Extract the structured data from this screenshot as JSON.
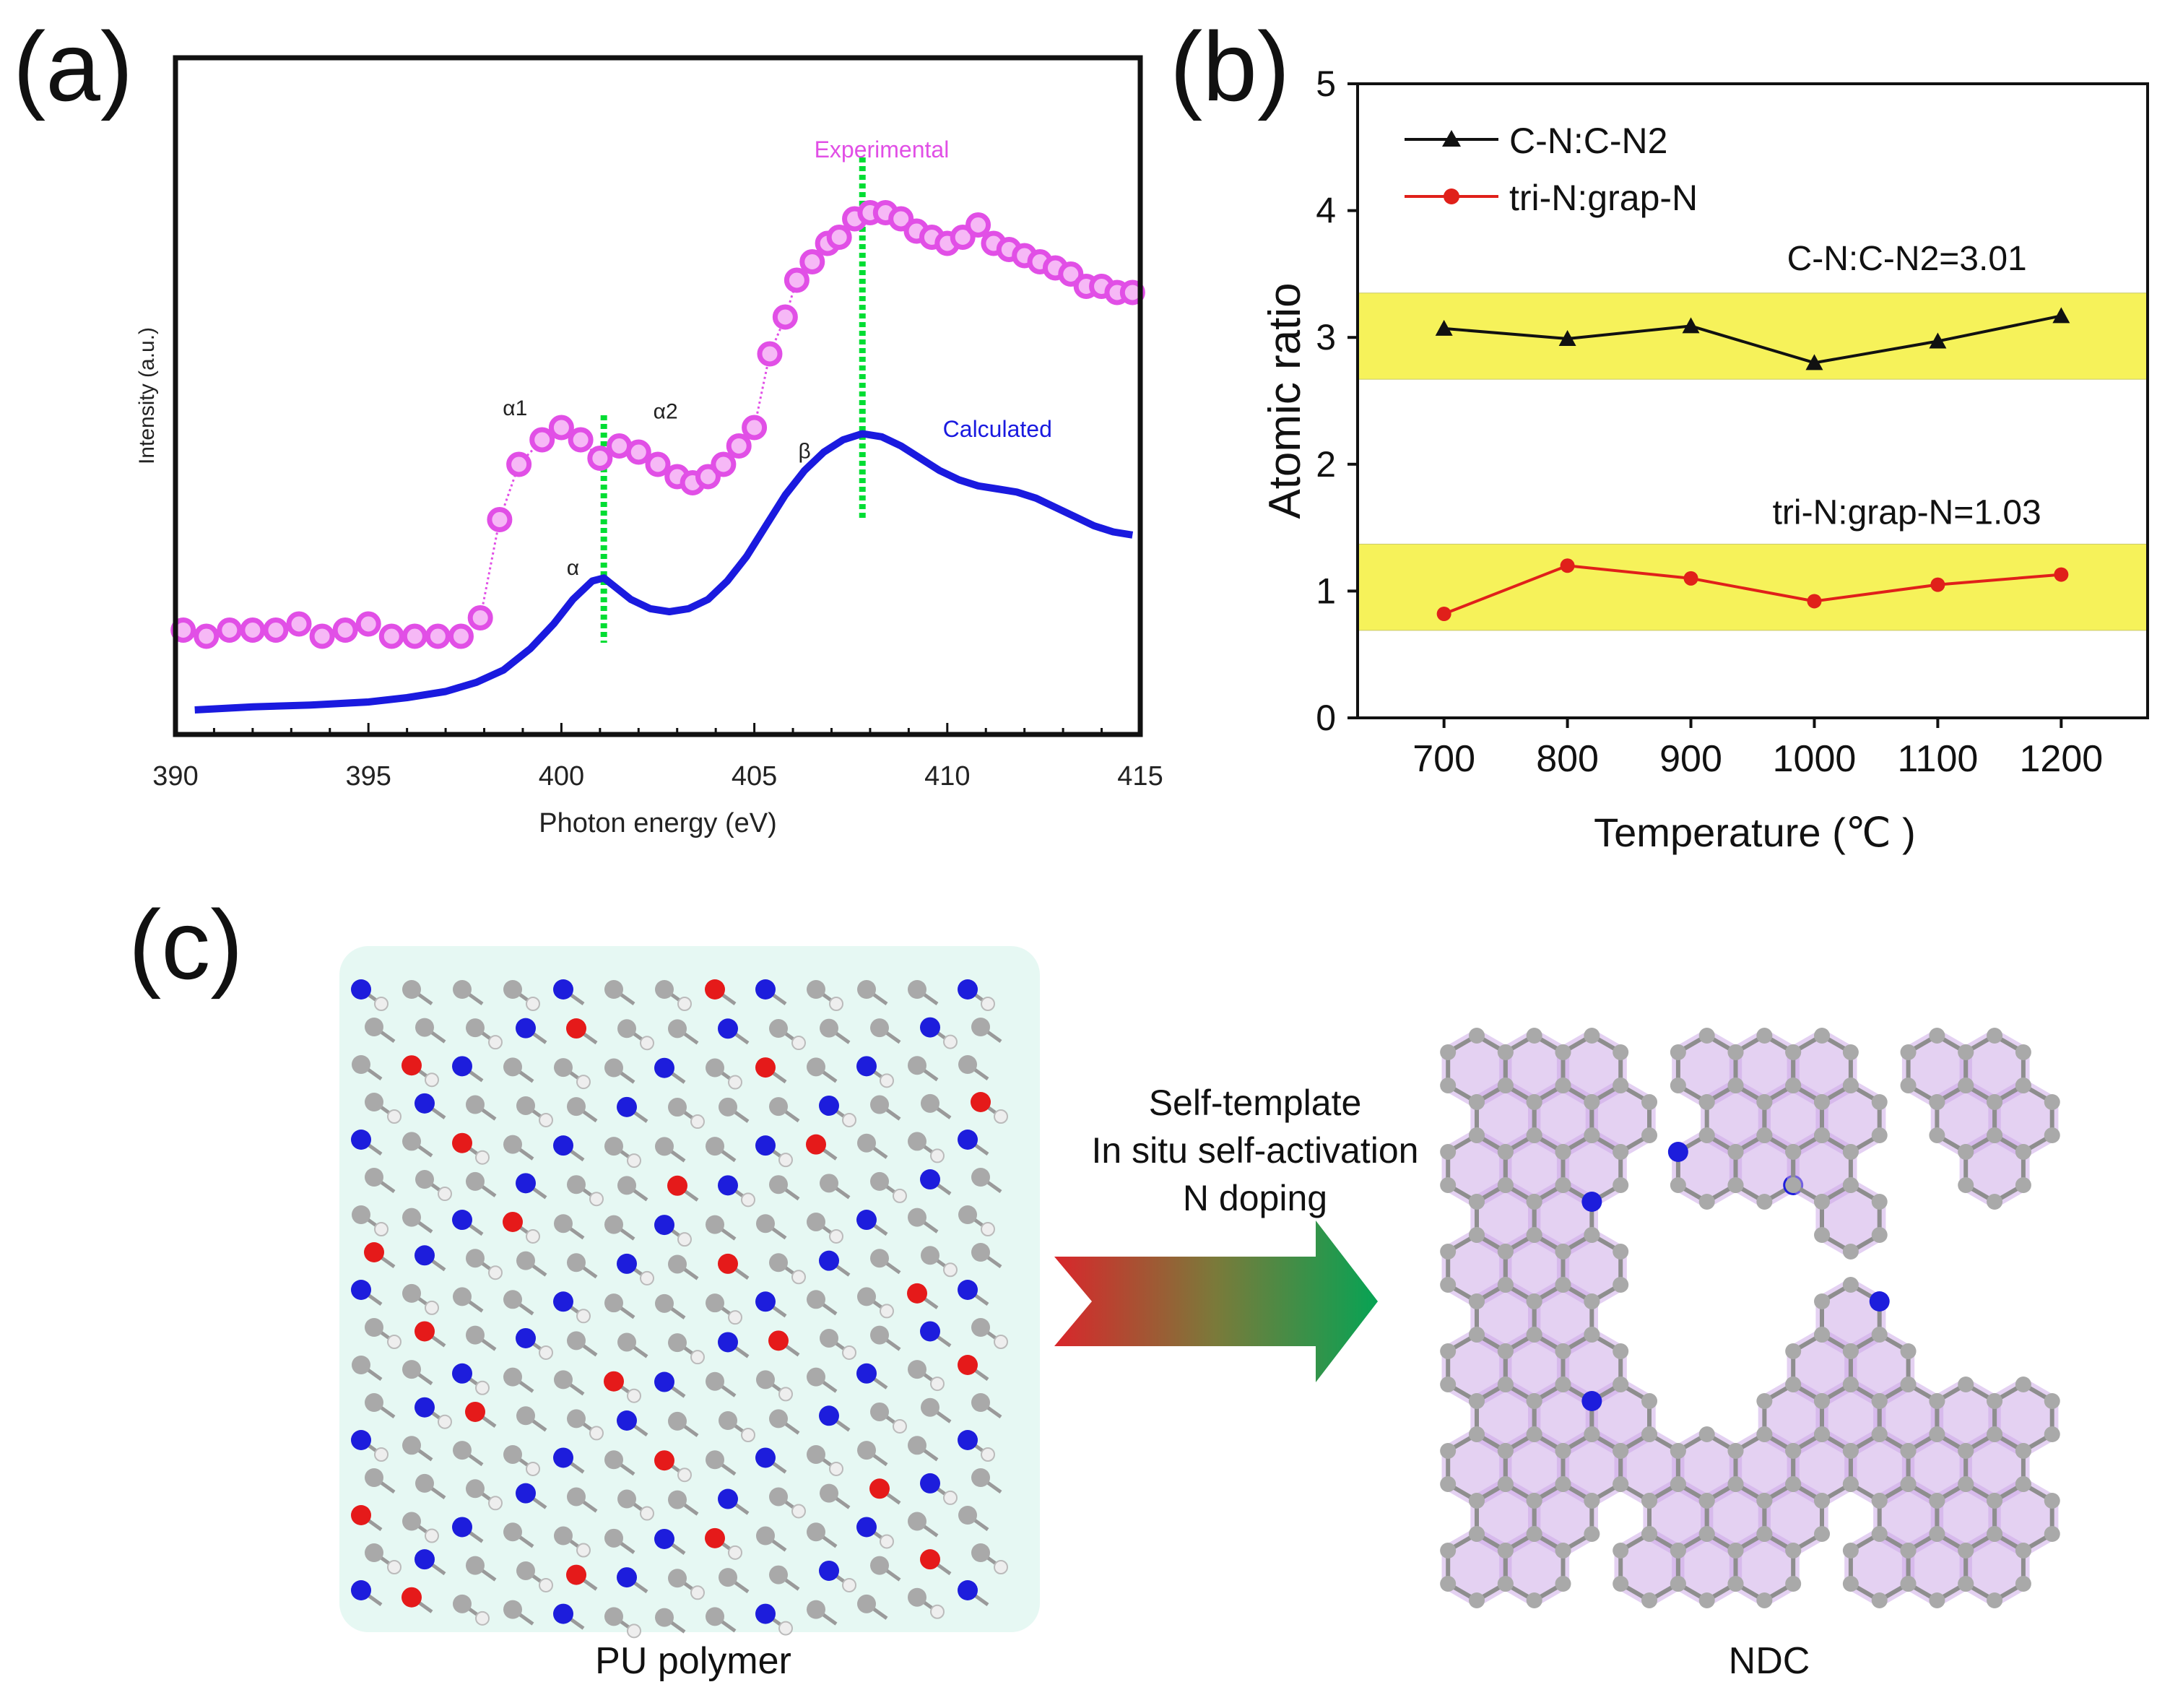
{
  "panels": {
    "a": "(a)",
    "b": "(b)",
    "c": "(c)"
  },
  "colors": {
    "experimental": "#e14fe6",
    "calculated": "#1a1adf",
    "guide": "#00dd33",
    "band": "#f6f25a",
    "series1": "#111111",
    "series2": "#e0201a",
    "arrow_start": "#d9262b",
    "arrow_end": "#07a354",
    "carbon": "#a9a9a9",
    "nitrogen": "#1d1ddc",
    "oxygen": "#e51a1a",
    "pu_glow": "#8fe0c8",
    "ndc_glow": "#c9a4e6"
  },
  "chart_data": [
    {
      "panel": "a",
      "type": "line",
      "xlabel": "Photon energy (eV)",
      "ylabel": "Intensity (a.u.)",
      "xlim": [
        390,
        415
      ],
      "ylim": [
        0,
        1
      ],
      "xticks": [
        "390",
        "395",
        "400",
        "405",
        "410",
        "415"
      ],
      "series": [
        {
          "name": "Experimental",
          "x": [
            390.2,
            390.8,
            391.4,
            392.0,
            392.6,
            393.2,
            393.8,
            394.4,
            395.0,
            395.6,
            396.2,
            396.8,
            397.4,
            397.9,
            398.4,
            398.9,
            399.5,
            400.0,
            400.5,
            401.0,
            401.5,
            402.0,
            402.5,
            403.0,
            403.4,
            403.8,
            404.2,
            404.6,
            405.0,
            405.4,
            405.8,
            406.1,
            406.5,
            406.9,
            407.2,
            407.6,
            408.0,
            408.4,
            408.8,
            409.2,
            409.6,
            410.0,
            410.4,
            410.8,
            411.2,
            411.6,
            412.0,
            412.4,
            412.8,
            413.2,
            413.6,
            414.0,
            414.4,
            414.8
          ],
          "values": [
            0.15,
            0.14,
            0.15,
            0.15,
            0.15,
            0.16,
            0.14,
            0.15,
            0.16,
            0.14,
            0.14,
            0.14,
            0.14,
            0.17,
            0.33,
            0.42,
            0.46,
            0.48,
            0.46,
            0.43,
            0.45,
            0.44,
            0.42,
            0.4,
            0.39,
            0.4,
            0.42,
            0.45,
            0.48,
            0.6,
            0.66,
            0.72,
            0.75,
            0.78,
            0.79,
            0.82,
            0.83,
            0.83,
            0.82,
            0.8,
            0.79,
            0.78,
            0.79,
            0.81,
            0.78,
            0.77,
            0.76,
            0.75,
            0.74,
            0.73,
            0.71,
            0.71,
            0.7,
            0.7
          ],
          "color": "experimental"
        },
        {
          "name": "Calculated",
          "x": [
            390.5,
            392,
            393.5,
            395,
            396,
            397,
            397.8,
            398.5,
            399.2,
            399.8,
            400.3,
            400.8,
            401.1,
            401.4,
            401.8,
            402.3,
            402.8,
            403.3,
            403.8,
            404.3,
            404.8,
            405.3,
            405.8,
            406.3,
            406.8,
            407.3,
            407.8,
            408.3,
            408.8,
            409.3,
            409.8,
            410.3,
            410.8,
            411.3,
            411.8,
            412.3,
            412.8,
            413.3,
            413.8,
            414.3,
            414.8
          ],
          "values": [
            0.02,
            0.025,
            0.028,
            0.033,
            0.04,
            0.05,
            0.065,
            0.085,
            0.12,
            0.16,
            0.2,
            0.23,
            0.235,
            0.22,
            0.2,
            0.185,
            0.18,
            0.185,
            0.2,
            0.23,
            0.27,
            0.32,
            0.37,
            0.41,
            0.44,
            0.46,
            0.47,
            0.465,
            0.45,
            0.43,
            0.41,
            0.395,
            0.385,
            0.38,
            0.375,
            0.365,
            0.35,
            0.335,
            0.32,
            0.31,
            0.305
          ],
          "color": "calculated"
        }
      ],
      "guides_x": [
        401.1,
        407.8
      ],
      "annotations": [
        {
          "text": "Experimental",
          "x": 408.3,
          "y": 0.92,
          "color": "experimental"
        },
        {
          "text": "Calculated",
          "x": 411.3,
          "y": 0.465,
          "color": "calculated"
        },
        {
          "text": "α1",
          "x": 398.8,
          "y": 0.5
        },
        {
          "text": "α2",
          "x": 402.7,
          "y": 0.495
        },
        {
          "text": "α",
          "x": 400.3,
          "y": 0.24
        },
        {
          "text": "β",
          "x": 406.3,
          "y": 0.43
        }
      ]
    },
    {
      "panel": "b",
      "type": "line",
      "xlabel": "Temperature (℃ )",
      "ylabel": "Atomic ratio",
      "xlim": [
        630,
        1270
      ],
      "ylim": [
        0,
        5
      ],
      "xticks": [
        700,
        800,
        900,
        1000,
        1100,
        1200
      ],
      "yticks": [
        0,
        1,
        2,
        3,
        4,
        5
      ],
      "categories": [
        700,
        800,
        900,
        1000,
        1100,
        1200
      ],
      "bands": [
        {
          "from": 2.67,
          "to": 3.35
        },
        {
          "from": 0.69,
          "to": 1.37
        }
      ],
      "series": [
        {
          "name": "C-N:C-N2",
          "marker": "triangle",
          "color": "series1",
          "values": [
            3.07,
            2.99,
            3.09,
            2.8,
            2.97,
            3.17
          ]
        },
        {
          "name": "tri-N:grap-N",
          "marker": "circle",
          "color": "series2",
          "values": [
            0.82,
            1.2,
            1.1,
            0.92,
            1.05,
            1.13
          ]
        }
      ],
      "annotations": [
        {
          "text": "C-N:C-N2=3.01",
          "x": 1075,
          "y": 3.53
        },
        {
          "text": "tri-N:grap-N=1.03",
          "x": 1075,
          "y": 1.53
        }
      ]
    }
  ],
  "panel_c": {
    "left_label": "PU polymer",
    "right_label": "NDC",
    "arrow_lines": [
      "Self-template",
      "In situ self-activation",
      "N doping"
    ]
  }
}
